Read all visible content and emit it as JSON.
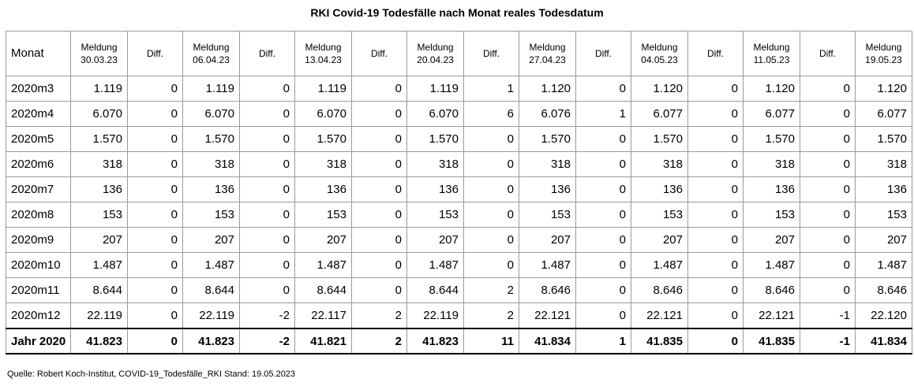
{
  "title": "RKI Covid-19 Todesfälle nach Monat reales Todesdatum",
  "source": "Quelle: Robert Koch-Institut, COVID-19_Todesfälle_RKI Stand: 19.05.2023",
  "headers": {
    "monat": "Monat",
    "meldung_label": "Meldung",
    "diff_label": "Diff.",
    "dates": [
      "30.03.23",
      "06.04.23",
      "13.04.23",
      "20.04.23",
      "27.04.23",
      "04.05.23",
      "11.05.23",
      "19.05.23"
    ]
  },
  "chart_data": {
    "type": "table",
    "title": "RKI Covid-19 Todesfälle nach Monat reales Todesdatum",
    "columns": [
      "Monat",
      "Meldung 30.03.23",
      "Diff.",
      "Meldung 06.04.23",
      "Diff.",
      "Meldung 13.04.23",
      "Diff.",
      "Meldung 20.04.23",
      "Diff.",
      "Meldung 27.04.23",
      "Diff.",
      "Meldung 04.05.23",
      "Diff.",
      "Meldung 11.05.23",
      "Diff.",
      "Meldung 19.05.23"
    ],
    "rows": [
      [
        "2020m3",
        "1.119",
        "0",
        "1.119",
        "0",
        "1.119",
        "0",
        "1.119",
        "1",
        "1.120",
        "0",
        "1.120",
        "0",
        "1.120",
        "0",
        "1.120"
      ],
      [
        "2020m4",
        "6.070",
        "0",
        "6.070",
        "0",
        "6.070",
        "0",
        "6.070",
        "6",
        "6.076",
        "1",
        "6.077",
        "0",
        "6.077",
        "0",
        "6.077"
      ],
      [
        "2020m5",
        "1.570",
        "0",
        "1.570",
        "0",
        "1.570",
        "0",
        "1.570",
        "0",
        "1.570",
        "0",
        "1.570",
        "0",
        "1.570",
        "0",
        "1.570"
      ],
      [
        "2020m6",
        "318",
        "0",
        "318",
        "0",
        "318",
        "0",
        "318",
        "0",
        "318",
        "0",
        "318",
        "0",
        "318",
        "0",
        "318"
      ],
      [
        "2020m7",
        "136",
        "0",
        "136",
        "0",
        "136",
        "0",
        "136",
        "0",
        "136",
        "0",
        "136",
        "0",
        "136",
        "0",
        "136"
      ],
      [
        "2020m8",
        "153",
        "0",
        "153",
        "0",
        "153",
        "0",
        "153",
        "0",
        "153",
        "0",
        "153",
        "0",
        "153",
        "0",
        "153"
      ],
      [
        "2020m9",
        "207",
        "0",
        "207",
        "0",
        "207",
        "0",
        "207",
        "0",
        "207",
        "0",
        "207",
        "0",
        "207",
        "0",
        "207"
      ],
      [
        "2020m10",
        "1.487",
        "0",
        "1.487",
        "0",
        "1.487",
        "0",
        "1.487",
        "0",
        "1.487",
        "0",
        "1.487",
        "0",
        "1.487",
        "0",
        "1.487"
      ],
      [
        "2020m11",
        "8.644",
        "0",
        "8.644",
        "0",
        "8.644",
        "0",
        "8.644",
        "2",
        "8.646",
        "0",
        "8.646",
        "0",
        "8.646",
        "0",
        "8.646"
      ],
      [
        "2020m12",
        "22.119",
        "0",
        "22.119",
        "-2",
        "22.117",
        "2",
        "22.119",
        "2",
        "22.121",
        "0",
        "22.121",
        "0",
        "22.121",
        "-1",
        "22.120"
      ]
    ],
    "total_row": [
      "Jahr 2020",
      "41.823",
      "0",
      "41.823",
      "-2",
      "41.821",
      "2",
      "41.823",
      "11",
      "41.834",
      "1",
      "41.835",
      "0",
      "41.835",
      "-1",
      "41.834"
    ]
  }
}
